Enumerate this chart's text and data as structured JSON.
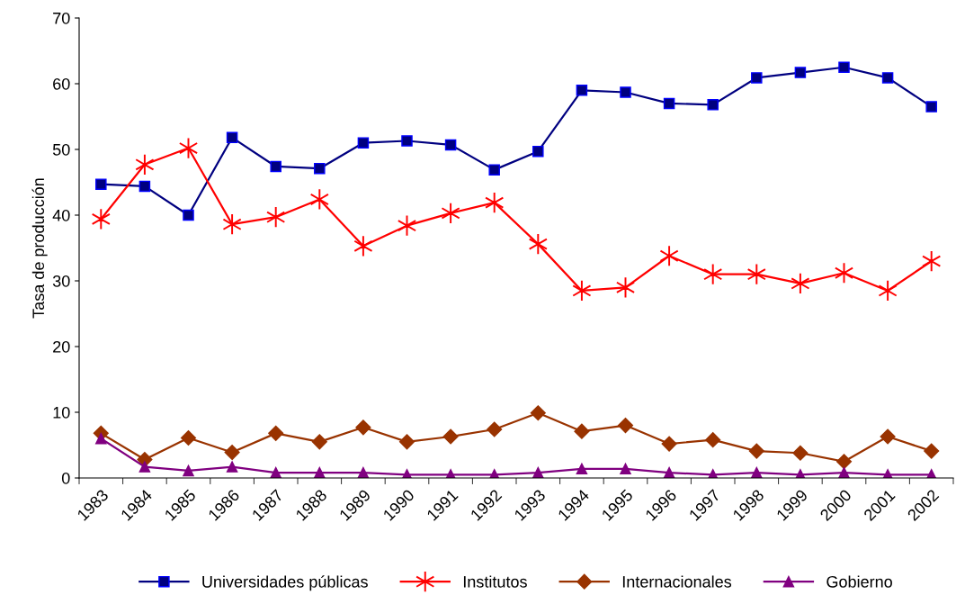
{
  "chart_data": {
    "type": "line",
    "ylabel": "Tasa de producción",
    "categories": [
      "1983",
      "1984",
      "1985",
      "1986",
      "1987",
      "1988",
      "1989",
      "1990",
      "1991",
      "1992",
      "1993",
      "1994",
      "1995",
      "1996",
      "1997",
      "1998",
      "1999",
      "2000",
      "2001",
      "2002"
    ],
    "series": [
      {
        "name": "Universidades públicas",
        "color": "#000080",
        "marker": "square",
        "values": [
          44.7,
          44.4,
          40,
          51.8,
          47.4,
          47.1,
          51,
          51.3,
          50.7,
          46.9,
          49.7,
          59,
          58.7,
          57,
          56.8,
          60.9,
          61.7,
          62.5,
          60.9,
          56.5
        ]
      },
      {
        "name": "Institutos",
        "color": "#ff0000",
        "marker": "cross",
        "values": [
          39.4,
          47.7,
          50.2,
          38.6,
          39.7,
          42.4,
          35.3,
          38.4,
          40.3,
          41.9,
          35.6,
          28.5,
          29,
          33.8,
          31,
          31,
          29.6,
          31.2,
          28.5,
          33
        ]
      },
      {
        "name": "Internacionales",
        "color": "#993300",
        "marker": "diamond",
        "values": [
          6.8,
          2.8,
          6.1,
          3.9,
          6.8,
          5.5,
          7.7,
          5.5,
          6.3,
          7.4,
          9.9,
          7.1,
          8,
          5.2,
          5.8,
          4.1,
          3.8,
          2.5,
          6.3,
          4.1
        ]
      },
      {
        "name": "Gobierno",
        "color": "#800080",
        "marker": "triangle",
        "values": [
          6,
          1.7,
          1.1,
          1.7,
          0.8,
          0.8,
          0.8,
          0.5,
          0.5,
          0.5,
          0.8,
          1.4,
          1.4,
          0.8,
          0.5,
          0.8,
          0.5,
          0.8,
          0.5,
          0.5
        ]
      }
    ],
    "ylim": [
      0,
      70
    ],
    "yticks": [
      0,
      10,
      20,
      30,
      40,
      50,
      60,
      70
    ],
    "grid": false,
    "legend": "bottom",
    "line_style": "solid"
  }
}
